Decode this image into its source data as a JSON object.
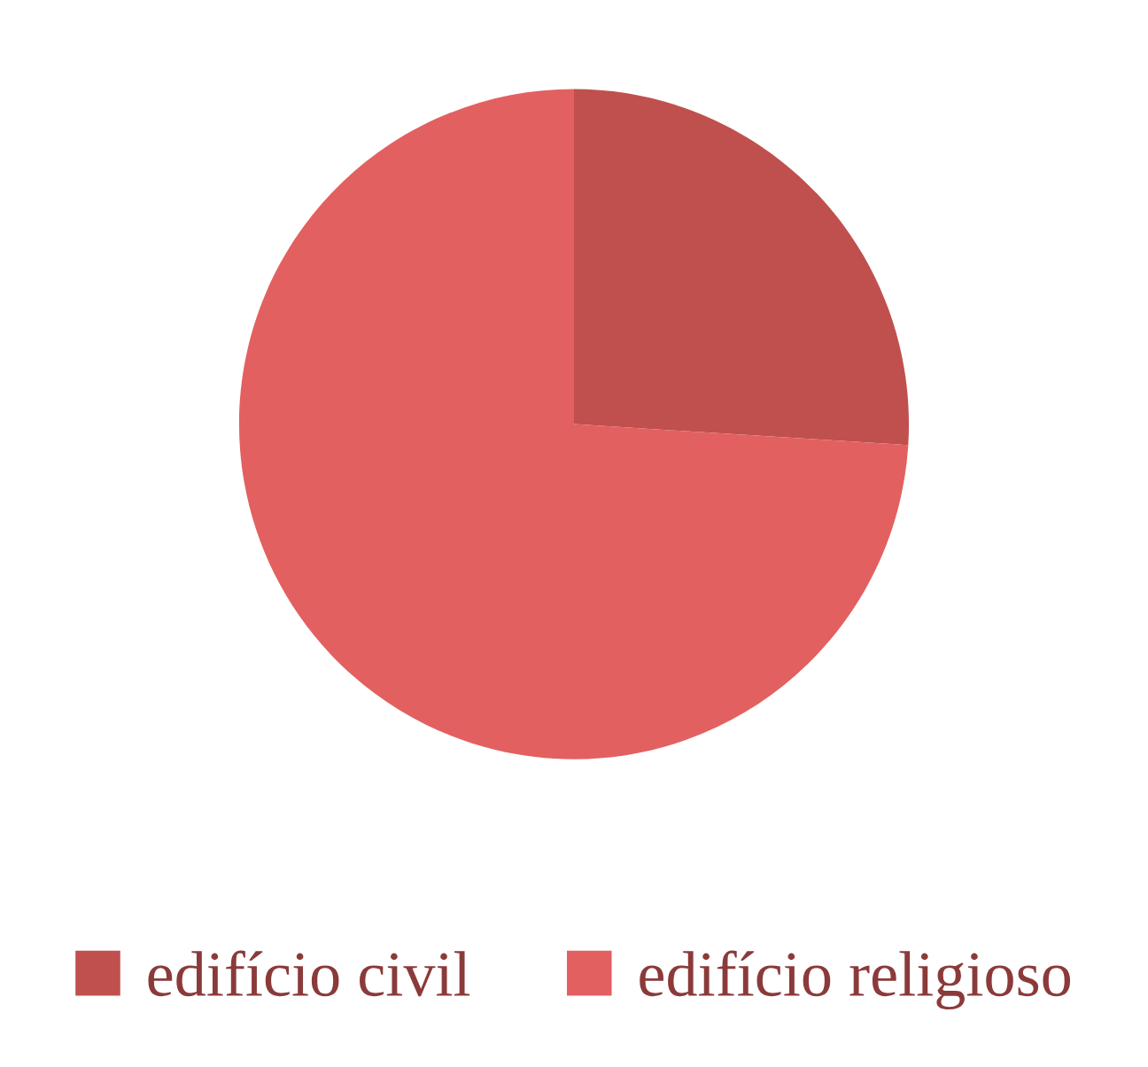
{
  "chart_data": {
    "type": "pie",
    "categories": [
      "edifício civil",
      "edifício religioso"
    ],
    "values": [
      26,
      74
    ],
    "colors": [
      "#c0504d",
      "#e36060"
    ],
    "legend": "bottom"
  }
}
